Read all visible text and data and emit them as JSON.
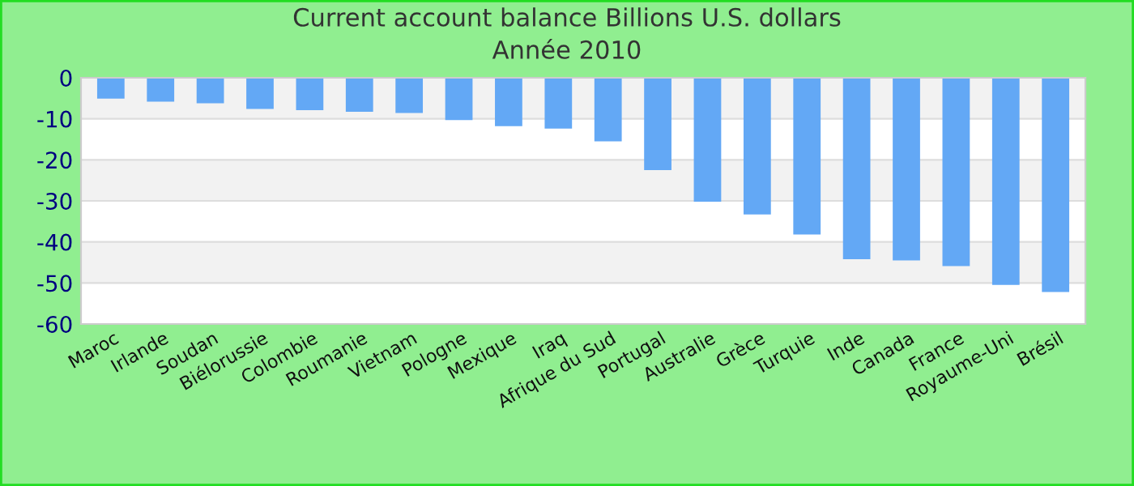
{
  "chart_data": {
    "type": "bar",
    "title": "Current account balance Billions U.S. dollars",
    "subtitle": "Année 2010",
    "categories": [
      "Maroc",
      "Irlande",
      "Soudan",
      "Biélorussie",
      "Colombie",
      "Roumanie",
      "Vietnam",
      "Pologne",
      "Mexique",
      "Iraq",
      "Afrique du Sud",
      "Portugal",
      "Australie",
      "Grèce",
      "Turquie",
      "Inde",
      "Canada",
      "France",
      "Royaume-Uni",
      "Brésil"
    ],
    "values": [
      -5.1,
      -5.8,
      -6.2,
      -7.6,
      -7.9,
      -8.3,
      -8.6,
      -10.3,
      -11.8,
      -12.4,
      -15.5,
      -22.5,
      -30.2,
      -33.3,
      -38.2,
      -44.2,
      -44.5,
      -45.9,
      -50.5,
      -52.2
    ],
    "color": "#63a8f5",
    "ylim": [
      -60,
      0
    ],
    "yticks": [
      0,
      -10,
      -20,
      -30,
      -40,
      -50,
      -60
    ],
    "grid": "y",
    "legend": false
  }
}
